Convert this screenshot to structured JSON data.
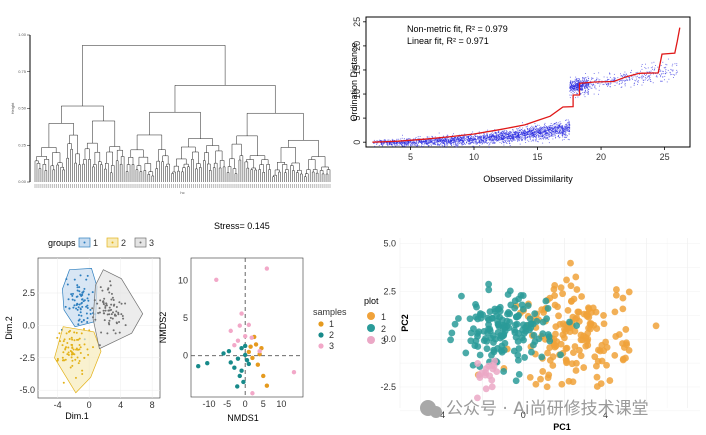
{
  "chart_data": [
    {
      "type": "dendrogram",
      "ylabel": "Height",
      "xlabel": "hc",
      "yticks": [
        "1.00",
        "0.75",
        "0.50",
        "0.25",
        "0.00"
      ],
      "ylim": [
        0,
        1
      ]
    },
    {
      "type": "scatter",
      "title": "",
      "xlabel": "Observed Dissimilarity",
      "ylabel": "Ordination Distance",
      "xticks": [
        5,
        10,
        15,
        20,
        25
      ],
      "yticks": [
        0,
        5,
        10,
        15,
        20,
        25
      ],
      "xlim": [
        1.5,
        27
      ],
      "ylim": [
        -1,
        26
      ],
      "legend": [
        "Non-metric fit, R² = 0.979",
        "Linear fit, R² = 0.971"
      ],
      "step_fit": [
        [
          2,
          0
        ],
        [
          4,
          0.2
        ],
        [
          6,
          0.6
        ],
        [
          8,
          1.1
        ],
        [
          10,
          1.7
        ],
        [
          12,
          2.6
        ],
        [
          14,
          3.6
        ],
        [
          15,
          4.5
        ],
        [
          16,
          5.4
        ],
        [
          17,
          7.3
        ],
        [
          17.8,
          7.4
        ],
        [
          17.8,
          9.8
        ],
        [
          18.3,
          9.8
        ],
        [
          18.3,
          12.2
        ],
        [
          19.5,
          12.5
        ],
        [
          21,
          12.6
        ],
        [
          22,
          13.6
        ],
        [
          23,
          14.3
        ],
        [
          24.5,
          14.4
        ],
        [
          24.8,
          18.3
        ],
        [
          25.8,
          18.5
        ],
        [
          26,
          21
        ],
        [
          26.2,
          23.8
        ]
      ]
    },
    {
      "type": "scatter",
      "xlabel": "Dim.1",
      "ylabel": "Dim.2",
      "xticks": [
        -4,
        0,
        4,
        8
      ],
      "yticks": [
        2.5,
        0.0,
        -2.5,
        -5.0
      ],
      "ytick_labels": [
        "2.5",
        "0.0",
        "-2.5",
        "-5.0"
      ],
      "xlim": [
        -6.5,
        9
      ],
      "ylim": [
        -5.6,
        5.2
      ],
      "legend_title": "groups",
      "groups": [
        {
          "name": "1",
          "color": "#2e7fbf",
          "fill": "#c8dcf0",
          "center": [
            -1.2,
            2.0
          ],
          "hull": [
            [
              -2.5,
              4.3
            ],
            [
              0.3,
              4.4
            ],
            [
              1.0,
              3.0
            ],
            [
              0.8,
              0.3
            ],
            [
              -1.8,
              -0.1
            ],
            [
              -3.2,
              1.2
            ],
            [
              -3.4,
              2.8
            ]
          ]
        },
        {
          "name": "2",
          "color": "#e3b21a",
          "fill": "#f7ebba",
          "center": [
            -2.0,
            -1.9
          ],
          "hull": [
            [
              -3.3,
              -0.1
            ],
            [
              0.6,
              -0.5
            ],
            [
              1.5,
              -2.0
            ],
            [
              0.2,
              -4.0
            ],
            [
              -1.7,
              -5.2
            ],
            [
              -4.4,
              -2.5
            ]
          ]
        },
        {
          "name": "3",
          "color": "#707070",
          "fill": "#e4e4e4",
          "center": [
            2.7,
            1.1
          ],
          "hull": [
            [
              1.8,
              4.3
            ],
            [
              4.1,
              3.6
            ],
            [
              6.8,
              0.9
            ],
            [
              5.4,
              -0.6
            ],
            [
              1.3,
              -1.8
            ],
            [
              0.5,
              0.5
            ],
            [
              0.8,
              3.1
            ]
          ]
        }
      ]
    },
    {
      "type": "scatter",
      "title": "Stress= 0.145",
      "xlabel": "NMDS1",
      "ylabel": "NMDS2",
      "xticks": [
        -10,
        -5,
        0,
        5,
        10
      ],
      "yticks": [
        10,
        5,
        0
      ],
      "xlim": [
        -15,
        16
      ],
      "ylim": [
        -5.5,
        13
      ],
      "legend_title": "samples",
      "series": [
        {
          "name": "1",
          "color": "#e59a1e",
          "points": [
            [
              1,
              0.5
            ],
            [
              2,
              -0.3
            ],
            [
              3,
              1.5
            ],
            [
              4,
              0.2
            ],
            [
              5,
              -2.7
            ],
            [
              6,
              -4.0
            ],
            [
              2.5,
              2.5
            ],
            [
              3.5,
              -1.2
            ],
            [
              1.5,
              1.2
            ],
            [
              4.5,
              1.0
            ]
          ]
        },
        {
          "name": "2",
          "color": "#178a8a",
          "points": [
            [
              -10.5,
              -1.0
            ],
            [
              -13,
              -1.4
            ],
            [
              -6,
              0.3
            ],
            [
              -4,
              -0.9
            ],
            [
              -3,
              -1.6
            ],
            [
              -2,
              -0.4
            ],
            [
              -1,
              -2.0
            ],
            [
              0,
              0.1
            ],
            [
              -0.5,
              -3.5
            ],
            [
              -2.2,
              -4.1
            ],
            [
              1,
              -1.1
            ],
            [
              0,
              1.3
            ],
            [
              -1,
              1.0
            ],
            [
              -4.5,
              0.6
            ],
            [
              -1.5,
              -2.7
            ],
            [
              0.5,
              -0.6
            ]
          ]
        },
        {
          "name": "3",
          "color": "#f2a8c8",
          "points": [
            [
              -8,
              10.1
            ],
            [
              6,
              11.6
            ],
            [
              -4,
              3.3
            ],
            [
              -2,
              2.0
            ],
            [
              0,
              2.6
            ],
            [
              1,
              4.1
            ],
            [
              -1,
              5.6
            ],
            [
              4,
              0.6
            ],
            [
              -3,
              1.4
            ],
            [
              13.5,
              -2.2
            ],
            [
              2,
              -5.0
            ],
            [
              -1.5,
              4.0
            ],
            [
              1.8,
              2.4
            ]
          ]
        }
      ]
    },
    {
      "type": "scatter",
      "xlabel": "PC1",
      "ylabel": "PC2",
      "xticks": [
        -4,
        0,
        4
      ],
      "yticks": [
        5.0,
        2.5,
        0.0,
        -2.5
      ],
      "ytick_labels": [
        "5.0",
        "2.5",
        "0.0",
        "-2.5"
      ],
      "xlim": [
        -6,
        8.6
      ],
      "ylim": [
        -3.6,
        5.3
      ],
      "legend_title": "plot",
      "series": [
        {
          "name": "1",
          "color": "#f0a23a",
          "center": [
            2.5,
            0.2
          ],
          "spread": [
            1.3,
            1.4
          ],
          "count": 170
        },
        {
          "name": "2",
          "color": "#2a9b99",
          "center": [
            -1.0,
            0.4
          ],
          "spread": [
            1.1,
            0.9
          ],
          "count": 155
        },
        {
          "name": "3",
          "color": "#eba8c6",
          "center": [
            -1.6,
            -1.8
          ],
          "spread": [
            0.5,
            0.5
          ],
          "count": 18
        }
      ]
    }
  ],
  "watermark": "公众号 · Ai尚研修技术课堂"
}
